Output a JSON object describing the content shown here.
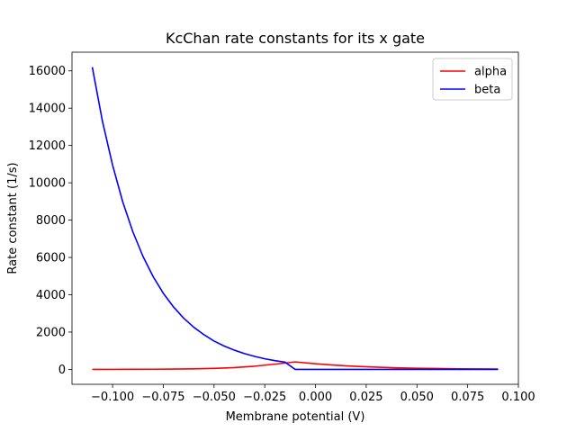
{
  "chart_data": {
    "type": "line",
    "title": "KcChan rate constants for its x gate",
    "xlabel": "Membrane potential (V)",
    "ylabel": "Rate constant (1/s)",
    "xlim": [
      -0.12,
      0.1
    ],
    "ylim": [
      -800,
      17000
    ],
    "xticks": [
      -0.1,
      -0.075,
      -0.05,
      -0.025,
      0.0,
      0.025,
      0.05,
      0.075,
      0.1
    ],
    "xtick_labels": [
      "−0.100",
      "−0.075",
      "−0.050",
      "−0.025",
      "0.000",
      "0.025",
      "0.050",
      "0.075",
      "0.100"
    ],
    "yticks": [
      0,
      2000,
      4000,
      6000,
      8000,
      10000,
      12000,
      14000,
      16000
    ],
    "ytick_labels": [
      "0",
      "2000",
      "4000",
      "6000",
      "8000",
      "10000",
      "12000",
      "14000",
      "16000"
    ],
    "legend_position": "top-right",
    "grid": false,
    "series": [
      {
        "name": "alpha",
        "color": "#ff0000",
        "x": [
          -0.11,
          -0.1,
          -0.09,
          -0.08,
          -0.07,
          -0.06,
          -0.05,
          -0.04,
          -0.03,
          -0.02,
          -0.015,
          -0.01,
          0.0,
          0.01,
          0.02,
          0.03,
          0.04,
          0.05,
          0.06,
          0.07,
          0.08,
          0.09
        ],
        "y": [
          1,
          2,
          4,
          8,
          15,
          28,
          52,
          95,
          170,
          280,
          340,
          400,
          300,
          220,
          160,
          120,
          85,
          60,
          45,
          32,
          23,
          17
        ]
      },
      {
        "name": "beta",
        "color": "#0000ff",
        "x": [
          -0.11,
          -0.105,
          -0.1,
          -0.095,
          -0.09,
          -0.085,
          -0.08,
          -0.075,
          -0.07,
          -0.065,
          -0.06,
          -0.055,
          -0.05,
          -0.045,
          -0.04,
          -0.035,
          -0.03,
          -0.025,
          -0.02,
          -0.015,
          -0.01,
          0.0,
          0.02,
          0.04,
          0.06,
          0.08,
          0.09
        ],
        "y": [
          16200,
          13300,
          10950,
          8980,
          7370,
          6050,
          4970,
          4080,
          3350,
          2750,
          2260,
          1860,
          1520,
          1250,
          1030,
          845,
          694,
          570,
          468,
          385,
          0,
          0,
          0,
          0,
          0,
          0,
          0
        ]
      }
    ]
  }
}
